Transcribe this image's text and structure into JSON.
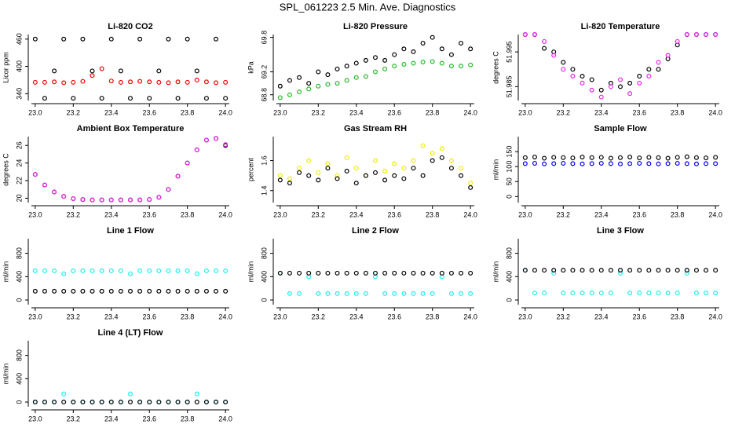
{
  "title": "SPL_061223  2.5 Min. Ave. Diagnostics",
  "chart_data": [
    {
      "type": "scatter",
      "title": "Li-820 CO2",
      "ylabel": "Licor ppm",
      "x": [
        23.0,
        23.05,
        23.1,
        23.15,
        23.2,
        23.25,
        23.3,
        23.35,
        23.4,
        23.45,
        23.5,
        23.55,
        23.6,
        23.65,
        23.7,
        23.75,
        23.8,
        23.85,
        23.9,
        23.95,
        24.0
      ],
      "series": [
        {
          "color": "#000000",
          "values": [
            460,
            330,
            390,
            460,
            330,
            460,
            390,
            330,
            460,
            390,
            330,
            460,
            330,
            390,
            460,
            330,
            460,
            390,
            330,
            460,
            330
          ]
        },
        {
          "color": "#ff0000",
          "values": [
            365,
            365,
            366,
            364,
            365,
            367,
            380,
            395,
            368,
            365,
            366,
            367,
            366,
            365,
            364,
            366,
            365,
            370,
            366,
            364,
            365
          ]
        }
      ],
      "xlim": [
        22.98,
        24.02
      ],
      "ylim": [
        325,
        470
      ],
      "xticks": [
        {
          "value": 23,
          "label": "23.0"
        },
        23.2,
        23.4,
        23.6,
        23.8,
        {
          "value": 24,
          "label": "24.0"
        }
      ],
      "yticks": [
        340,
        400,
        460
      ]
    },
    {
      "type": "scatter",
      "title": "Li-820 Pressure",
      "ylabel": "kPa",
      "x": [
        23.0,
        23.05,
        23.1,
        23.15,
        23.2,
        23.25,
        23.3,
        23.35,
        23.4,
        23.45,
        23.5,
        23.55,
        23.6,
        23.65,
        23.7,
        23.75,
        23.8,
        23.85,
        23.9,
        23.95,
        24.0
      ],
      "series": [
        {
          "color": "#000000",
          "values": [
            68.95,
            69.05,
            69.1,
            69.0,
            69.2,
            69.15,
            69.25,
            69.3,
            69.35,
            69.4,
            69.45,
            69.4,
            69.5,
            69.6,
            69.55,
            69.7,
            69.8,
            69.6,
            69.5,
            69.7,
            69.6
          ]
        },
        {
          "color": "#22bb22",
          "values": [
            68.75,
            68.8,
            68.85,
            68.9,
            68.95,
            68.98,
            69.0,
            69.05,
            69.1,
            69.12,
            69.2,
            69.25,
            69.3,
            69.33,
            69.35,
            69.37,
            69.38,
            69.35,
            69.3,
            69.3,
            69.32
          ]
        }
      ],
      "xlim": [
        22.98,
        24.02
      ],
      "ylim": [
        68.7,
        69.85
      ],
      "xticks": [
        {
          "value": 23,
          "label": "23.0"
        },
        23.2,
        23.4,
        23.6,
        23.8,
        {
          "value": 24,
          "label": "24.0"
        }
      ],
      "yticks": [
        68.8,
        69.2,
        69.8
      ]
    },
    {
      "type": "scatter",
      "title": "Li-820 Temperature",
      "ylabel": "degrees C",
      "x": [
        23.0,
        23.05,
        23.1,
        23.15,
        23.2,
        23.25,
        23.3,
        23.35,
        23.4,
        23.45,
        23.5,
        23.55,
        23.6,
        23.65,
        23.7,
        23.75,
        23.8,
        23.85,
        23.9,
        23.95,
        24.0
      ],
      "series": [
        {
          "color": "#000000",
          "values": [
            52.0,
            52.0,
            51.996,
            51.995,
            51.992,
            51.99,
            51.988,
            51.987,
            51.984,
            51.986,
            51.985,
            51.986,
            51.988,
            51.99,
            51.99,
            51.993,
            51.997,
            52.0,
            52.0,
            52.0,
            52.0
          ]
        },
        {
          "color": "#ee22ee",
          "values": [
            52.0,
            52.0,
            51.998,
            51.994,
            51.99,
            51.988,
            51.986,
            51.984,
            51.982,
            51.985,
            51.987,
            51.983,
            51.986,
            51.988,
            51.992,
            51.994,
            51.998,
            52.0,
            52.0,
            52.0,
            52.0
          ]
        }
      ],
      "xlim": [
        22.98,
        24.02
      ],
      "ylim": [
        51.981,
        52.0
      ],
      "xticks": [
        {
          "value": 23,
          "label": "23.0"
        },
        23.2,
        23.4,
        23.6,
        23.8,
        {
          "value": 24,
          "label": "24.0"
        }
      ],
      "yticks": [
        51.985,
        51.995
      ]
    },
    {
      "type": "scatter",
      "title": "Ambient Box Temperature",
      "ylabel": "degrees C",
      "x": [
        23.0,
        23.05,
        23.1,
        23.15,
        23.2,
        23.25,
        23.3,
        23.35,
        23.4,
        23.45,
        23.5,
        23.55,
        23.6,
        23.65,
        23.7,
        23.75,
        23.8,
        23.85,
        23.9,
        23.95,
        24.0
      ],
      "series": [
        {
          "color": "#000000",
          "values": [
            22.7,
            21.5,
            20.7,
            20.2,
            19.95,
            19.85,
            19.8,
            19.8,
            19.8,
            19.8,
            19.8,
            19.8,
            19.85,
            20.1,
            21.0,
            22.5,
            24.0,
            25.5,
            26.6,
            26.8,
            26.0
          ]
        },
        {
          "color": "#ee22ee",
          "values": [
            22.7,
            21.5,
            20.7,
            20.2,
            19.95,
            19.85,
            19.8,
            19.8,
            19.8,
            19.8,
            19.8,
            19.8,
            19.85,
            20.1,
            21.0,
            22.5,
            24.0,
            25.5,
            26.6,
            26.8,
            26.1
          ]
        }
      ],
      "xlim": [
        22.98,
        24.02
      ],
      "ylim": [
        19.5,
        27.0
      ],
      "xticks": [
        {
          "value": 23,
          "label": "23.0"
        },
        23.2,
        23.4,
        23.6,
        23.8,
        {
          "value": 24,
          "label": "24.0"
        }
      ],
      "yticks": [
        20,
        22,
        24,
        26
      ]
    },
    {
      "type": "scatter",
      "title": "Gas Stream RH",
      "ylabel": "percent",
      "x": [
        23.0,
        23.05,
        23.1,
        23.15,
        23.2,
        23.25,
        23.3,
        23.35,
        23.4,
        23.45,
        23.5,
        23.55,
        23.6,
        23.65,
        23.7,
        23.75,
        23.8,
        23.85,
        23.9,
        23.95,
        24.0
      ],
      "series": [
        {
          "color": "#eeee00",
          "values": [
            1.5,
            1.48,
            1.55,
            1.6,
            1.52,
            1.58,
            1.5,
            1.62,
            1.55,
            1.5,
            1.6,
            1.53,
            1.58,
            1.55,
            1.6,
            1.7,
            1.65,
            1.68,
            1.6,
            1.55,
            1.45
          ]
        },
        {
          "color": "#000000",
          "values": [
            1.47,
            1.45,
            1.52,
            1.5,
            1.47,
            1.55,
            1.48,
            1.53,
            1.45,
            1.5,
            1.52,
            1.47,
            1.5,
            1.48,
            1.55,
            1.5,
            1.6,
            1.62,
            1.55,
            1.5,
            1.42
          ]
        }
      ],
      "xlim": [
        22.98,
        24.02
      ],
      "ylim": [
        1.32,
        1.76
      ],
      "xticks": [
        {
          "value": 23,
          "label": "23.0"
        },
        23.2,
        23.4,
        23.6,
        23.8,
        {
          "value": 24,
          "label": "24.0"
        }
      ],
      "yticks": [
        1.4,
        1.6
      ]
    },
    {
      "type": "scatter",
      "title": "Sample Flow",
      "ylabel": "ml/min",
      "x": [
        23.0,
        23.05,
        23.1,
        23.15,
        23.2,
        23.25,
        23.3,
        23.35,
        23.4,
        23.45,
        23.5,
        23.55,
        23.6,
        23.65,
        23.7,
        23.75,
        23.8,
        23.85,
        23.9,
        23.95,
        24.0
      ],
      "series": [
        {
          "color": "#000000",
          "values": [
            130,
            132,
            128,
            131,
            130,
            129,
            132,
            130,
            131,
            128,
            130,
            132,
            129,
            131,
            130,
            128,
            131,
            133,
            130,
            129,
            131
          ]
        },
        {
          "color": "#0000ee",
          "values": [
            110,
            111,
            109,
            110,
            111,
            110,
            109,
            110,
            111,
            110,
            109,
            110,
            111,
            110,
            109,
            110,
            111,
            110,
            109,
            110,
            110
          ]
        }
      ],
      "xlim": [
        22.98,
        24.02
      ],
      "ylim": [
        -20,
        200
      ],
      "xticks": [
        {
          "value": 23,
          "label": "23.0"
        },
        23.2,
        23.4,
        23.6,
        23.8,
        {
          "value": 24,
          "label": "24.0"
        }
      ],
      "yticks": [
        0,
        50,
        100,
        150
      ]
    },
    {
      "type": "scatter",
      "title": "Line 1 Flow",
      "ylabel": "ml/min",
      "x": [
        23.0,
        23.05,
        23.1,
        23.15,
        23.2,
        23.25,
        23.3,
        23.35,
        23.4,
        23.45,
        23.5,
        23.55,
        23.6,
        23.65,
        23.7,
        23.75,
        23.8,
        23.85,
        23.9,
        23.95,
        24.0
      ],
      "series": [
        {
          "color": "#22eeee",
          "values": [
            500,
            500,
            500,
            450,
            500,
            500,
            500,
            500,
            500,
            500,
            450,
            500,
            500,
            500,
            500,
            500,
            500,
            450,
            500,
            500,
            500
          ]
        },
        {
          "color": "#000000",
          "values": [
            150,
            150,
            150,
            150,
            150,
            150,
            150,
            150,
            150,
            150,
            150,
            150,
            150,
            150,
            150,
            150,
            150,
            150,
            150,
            150,
            150
          ]
        }
      ],
      "xlim": [
        22.98,
        24.02
      ],
      "ylim": [
        -80,
        1050
      ],
      "xticks": [
        {
          "value": 23,
          "label": "23.0"
        },
        23.2,
        23.4,
        23.6,
        23.8,
        {
          "value": 24,
          "label": "24.0"
        }
      ],
      "yticks": [
        0,
        400,
        800
      ]
    },
    {
      "type": "scatter",
      "title": "Line 2 Flow",
      "ylabel": "ml/min",
      "x": [
        23.0,
        23.05,
        23.1,
        23.15,
        23.2,
        23.25,
        23.3,
        23.35,
        23.4,
        23.45,
        23.5,
        23.55,
        23.6,
        23.65,
        23.7,
        23.75,
        23.8,
        23.85,
        23.9,
        23.95,
        24.0
      ],
      "series": [
        {
          "color": "#22eeee",
          "values": [
            460,
            110,
            110,
            400,
            110,
            110,
            110,
            110,
            110,
            110,
            400,
            110,
            110,
            110,
            110,
            110,
            110,
            400,
            110,
            110,
            110
          ]
        },
        {
          "color": "#000000",
          "values": [
            460,
            460,
            460,
            460,
            460,
            460,
            460,
            460,
            460,
            460,
            460,
            460,
            460,
            460,
            460,
            460,
            460,
            460,
            460,
            460,
            460
          ]
        }
      ],
      "xlim": [
        22.98,
        24.02
      ],
      "ylim": [
        -80,
        1050
      ],
      "xticks": [
        {
          "value": 23,
          "label": "23.0"
        },
        23.2,
        23.4,
        23.6,
        23.8,
        {
          "value": 24,
          "label": "24.0"
        }
      ],
      "yticks": [
        0,
        400,
        800
      ]
    },
    {
      "type": "scatter",
      "title": "Line 3 Flow",
      "ylabel": "ml/min",
      "x": [
        23.0,
        23.05,
        23.1,
        23.15,
        23.2,
        23.25,
        23.3,
        23.35,
        23.4,
        23.45,
        23.5,
        23.55,
        23.6,
        23.65,
        23.7,
        23.75,
        23.8,
        23.85,
        23.9,
        23.95,
        24.0
      ],
      "series": [
        {
          "color": "#22eeee",
          "values": [
            510,
            120,
            120,
            460,
            120,
            120,
            120,
            120,
            120,
            120,
            460,
            120,
            120,
            120,
            120,
            120,
            120,
            460,
            120,
            120,
            120
          ]
        },
        {
          "color": "#000000",
          "values": [
            510,
            510,
            510,
            510,
            510,
            510,
            510,
            510,
            510,
            510,
            510,
            510,
            510,
            510,
            510,
            510,
            510,
            510,
            510,
            510,
            510
          ]
        }
      ],
      "xlim": [
        22.98,
        24.02
      ],
      "ylim": [
        -80,
        1050
      ],
      "xticks": [
        {
          "value": 23,
          "label": "23.0"
        },
        23.2,
        23.4,
        23.6,
        23.8,
        {
          "value": 24,
          "label": "24.0"
        }
      ],
      "yticks": [
        0,
        400,
        800
      ]
    },
    {
      "type": "scatter",
      "title": "Line 4 (LT) Flow",
      "ylabel": "ml/min",
      "x": [
        23.0,
        23.05,
        23.1,
        23.15,
        23.2,
        23.25,
        23.3,
        23.35,
        23.4,
        23.45,
        23.5,
        23.55,
        23.6,
        23.65,
        23.7,
        23.75,
        23.8,
        23.85,
        23.9,
        23.95,
        24.0
      ],
      "series": [
        {
          "color": "#22eeee",
          "values": [
            0,
            0,
            0,
            140,
            0,
            0,
            0,
            0,
            0,
            0,
            140,
            0,
            0,
            0,
            0,
            0,
            0,
            140,
            0,
            0,
            0
          ]
        },
        {
          "color": "#000000",
          "values": [
            0,
            0,
            0,
            0,
            0,
            0,
            0,
            0,
            0,
            0,
            0,
            0,
            0,
            0,
            0,
            0,
            0,
            0,
            0,
            0,
            0
          ]
        }
      ],
      "xlim": [
        22.98,
        24.02
      ],
      "ylim": [
        -80,
        1050
      ],
      "xticks": [
        {
          "value": 23,
          "label": "23.0"
        },
        23.2,
        23.4,
        23.6,
        23.8,
        {
          "value": 24,
          "label": "24.0"
        }
      ],
      "yticks": [
        0,
        400,
        800
      ]
    }
  ]
}
